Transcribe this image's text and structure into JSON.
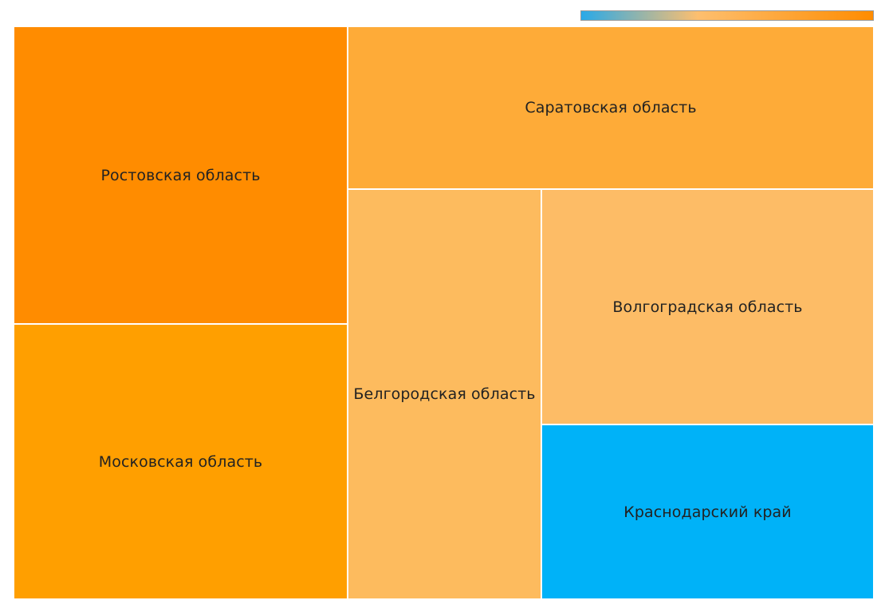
{
  "chart_data": {
    "type": "treemap",
    "color_scale": {
      "low_color": "#29a9e8",
      "mid_color": "#fdbf6f",
      "high_color": "#ff8c00"
    },
    "items": [
      {
        "name": "Ростовская область",
        "value": 1.0,
        "color": "#ff8c00"
      },
      {
        "name": "Московская область",
        "value": 0.92,
        "color": "#ff9f00"
      },
      {
        "name": "Саратовская область",
        "value": 0.88,
        "color": "#feab38"
      },
      {
        "name": "Белгородская область",
        "value": 0.78,
        "color": "#fdbb5e"
      },
      {
        "name": "Волгоградская область",
        "value": 0.74,
        "color": "#fdbc66"
      },
      {
        "name": "Краснодарский край",
        "value": 0.5,
        "color": "#00b2f8"
      }
    ]
  }
}
